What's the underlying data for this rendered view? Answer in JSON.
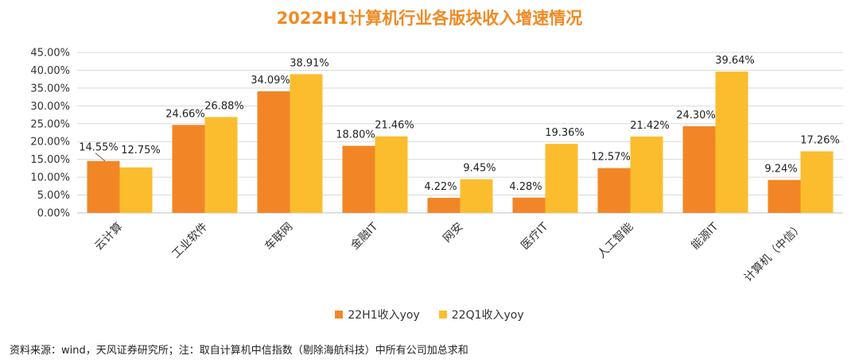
{
  "title": "2022H1计算机行业各版块收入增速情况",
  "source_note": "资料来源：wind，天风证券研究所；注：取自计算机中信指数（剔除海航科技）中所有公司加总求和",
  "colors": {
    "title": "#f08a24",
    "series1": "#f28626",
    "series2": "#fbbd2e",
    "grid": "#d9d9d9",
    "axis": "#bfbfbf"
  },
  "chart_data": {
    "type": "bar",
    "title": "2022H1计算机行业各版块收入增速情况",
    "categories": [
      "云计算",
      "工业软件",
      "车联网",
      "金融IT",
      "网安",
      "医疗IT",
      "人工智能",
      "能源IT",
      "计算机（中信）"
    ],
    "series": [
      {
        "name": "22H1收入yoy",
        "values": [
          14.55,
          24.66,
          34.09,
          18.8,
          4.22,
          4.28,
          12.57,
          24.3,
          9.24
        ],
        "labels": [
          "14.55%",
          "24.66%",
          "34.09%",
          "18.80%",
          "4.22%",
          "4.28%",
          "12.57%",
          "24.30%",
          "9.24%"
        ]
      },
      {
        "name": "22Q1收入yoy",
        "values": [
          12.75,
          26.88,
          38.91,
          21.46,
          9.45,
          19.36,
          21.42,
          39.64,
          17.26
        ],
        "labels": [
          "12.75%",
          "26.88%",
          "38.91%",
          "21.46%",
          "9.45%",
          "19.36%",
          "21.42%",
          "39.64%",
          "17.26%"
        ]
      }
    ],
    "ylim": [
      0,
      45
    ],
    "y_ticks": [
      "0.00%",
      "5.00%",
      "10.00%",
      "15.00%",
      "20.00%",
      "25.00%",
      "30.00%",
      "35.00%",
      "40.00%",
      "45.00%"
    ],
    "grid": true,
    "legend": "bottom"
  }
}
